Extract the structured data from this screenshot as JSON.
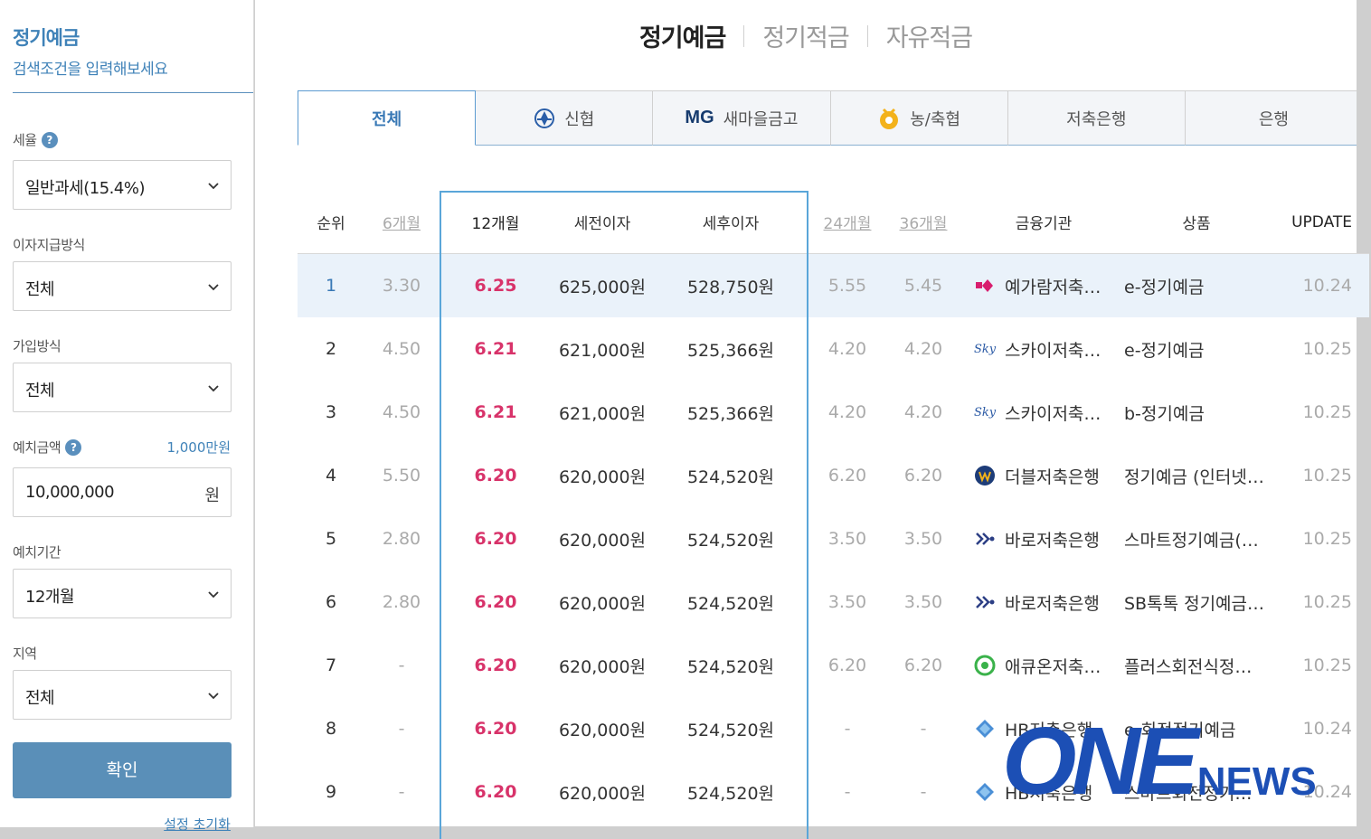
{
  "sidebar": {
    "title": "정기예금",
    "subtitle": "검색조건을 입력해보세요",
    "fields": [
      {
        "label": "세율",
        "value": "일반과세(15.4%)"
      },
      {
        "label": "이자지급방식",
        "value": "전체"
      },
      {
        "label": "가입방식",
        "value": "전체"
      },
      {
        "label": "예치금액",
        "value": "10,000,000",
        "hint": "1,000만원",
        "unit": "원"
      },
      {
        "label": "예치기간",
        "value": "12개월"
      },
      {
        "label": "지역",
        "value": "전체"
      }
    ],
    "confirm_label": "확인",
    "reset_label": "설정 초기화"
  },
  "top_tabs": [
    "정기예금",
    "정기적금",
    "자유적금"
  ],
  "inst_tabs": [
    {
      "label": "전체",
      "icon": "none"
    },
    {
      "label": "신협",
      "icon": "shinhyup-logo-icon"
    },
    {
      "label": "새마을금고",
      "icon": "mg-logo-icon",
      "logo_text": "MG"
    },
    {
      "label": "농/축협",
      "icon": "nonghyup-logo-icon"
    },
    {
      "label": "저축은행",
      "icon": "none"
    },
    {
      "label": "은행",
      "icon": "none"
    }
  ],
  "table": {
    "headers": {
      "rank": "순위",
      "m6": "6개월",
      "m12": "12개월",
      "pre_tax": "세전이자",
      "post_tax": "세후이자",
      "m24": "24개월",
      "m36": "36개월",
      "institution": "금융기관",
      "product": "상품",
      "update": "UPDATE"
    },
    "rows": [
      {
        "rank": "1",
        "m6": "3.30",
        "m12": "6.25",
        "pre_tax": "625,000원",
        "post_tax": "528,750원",
        "m24": "5.55",
        "m36": "5.45",
        "institution": "예가람저축은행",
        "product": "e-정기예금",
        "update": "10.24",
        "logo": "yegaram-logo-icon"
      },
      {
        "rank": "2",
        "m6": "4.50",
        "m12": "6.21",
        "pre_tax": "621,000원",
        "post_tax": "525,366원",
        "m24": "4.20",
        "m36": "4.20",
        "institution": "스카이저축은행",
        "product": "e-정기예금",
        "update": "10.25",
        "logo": "sky-logo-icon"
      },
      {
        "rank": "3",
        "m6": "4.50",
        "m12": "6.21",
        "pre_tax": "621,000원",
        "post_tax": "525,366원",
        "m24": "4.20",
        "m36": "4.20",
        "institution": "스카이저축은행",
        "product": "b-정기예금",
        "update": "10.25",
        "logo": "sky-logo-icon"
      },
      {
        "rank": "4",
        "m6": "5.50",
        "m12": "6.20",
        "pre_tax": "620,000원",
        "post_tax": "524,520원",
        "m24": "6.20",
        "m36": "6.20",
        "institution": "더블저축은행",
        "product": "정기예금 (인터넷뱅킹)",
        "update": "10.25",
        "logo": "double-logo-icon"
      },
      {
        "rank": "5",
        "m6": "2.80",
        "m12": "6.20",
        "pre_tax": "620,000원",
        "post_tax": "524,520원",
        "m24": "3.50",
        "m36": "3.50",
        "institution": "바로저축은행",
        "product": "스마트정기예금(인터넷)",
        "update": "10.25",
        "logo": "baro-logo-icon"
      },
      {
        "rank": "6",
        "m6": "2.80",
        "m12": "6.20",
        "pre_tax": "620,000원",
        "post_tax": "524,520원",
        "m24": "3.50",
        "m36": "3.50",
        "institution": "바로저축은행",
        "product": "SB톡톡 정기예금(비대면)",
        "update": "10.25",
        "logo": "baro-logo-icon"
      },
      {
        "rank": "7",
        "m6": "-",
        "m12": "6.20",
        "pre_tax": "620,000원",
        "post_tax": "524,520원",
        "m24": "6.20",
        "m36": "6.20",
        "institution": "애큐온저축은행",
        "product": "플러스회전식정기예금",
        "update": "10.25",
        "logo": "acuon-logo-icon"
      },
      {
        "rank": "8",
        "m6": "-",
        "m12": "6.20",
        "pre_tax": "620,000원",
        "post_tax": "524,520원",
        "m24": "-",
        "m36": "-",
        "institution": "HB저축은행",
        "product": "e-회전정기예금",
        "update": "10.24",
        "logo": "hb-logo-icon"
      },
      {
        "rank": "9",
        "m6": "-",
        "m12": "6.20",
        "pre_tax": "620,000원",
        "post_tax": "524,520원",
        "m24": "-",
        "m36": "-",
        "institution": "HB저축은행",
        "product": "스마트회전정기예금",
        "update": "10.24",
        "logo": "hb-logo-icon"
      }
    ]
  },
  "watermark": {
    "one": "ONE",
    "news": "NEWS"
  },
  "colors": {
    "accent": "#3f82b8",
    "rate": "#d8336a",
    "highlight_border": "#5aa6d9",
    "button": "#5a8fb8"
  }
}
